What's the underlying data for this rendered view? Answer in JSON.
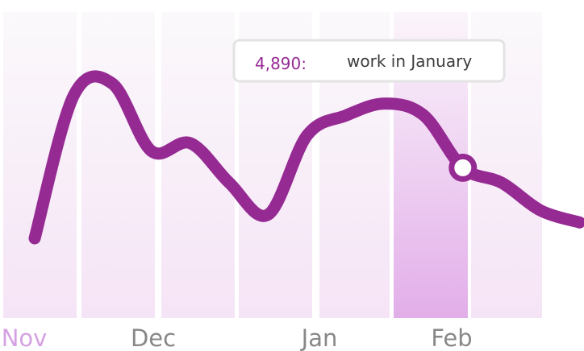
{
  "chart_data": {
    "type": "line",
    "categories": [
      "Nov",
      "Dec",
      "Jan",
      "Feb"
    ],
    "x": [
      0,
      0.25,
      0.5,
      0.75,
      1,
      1.25,
      1.5,
      1.75,
      2,
      2.25,
      2.5,
      2.75,
      3,
      3.25,
      3.5
    ],
    "series": [
      {
        "values": [
          4000,
          5800,
          5950,
          5100,
          5200,
          4700,
          4300,
          5300,
          5550,
          5700,
          5550,
          4890,
          4700,
          4350,
          4200
        ],
        "color": "#962a93"
      }
    ],
    "highlight": {
      "category": "Feb",
      "value": "4,890:",
      "text": "work in January"
    },
    "active_label": "Nov",
    "colors": {
      "line": "#962a93",
      "band": "#f6e8f8",
      "band_highlight": "#e2aee9",
      "label": "#888888",
      "label_active": "#d4a2e2"
    },
    "grid": false
  }
}
